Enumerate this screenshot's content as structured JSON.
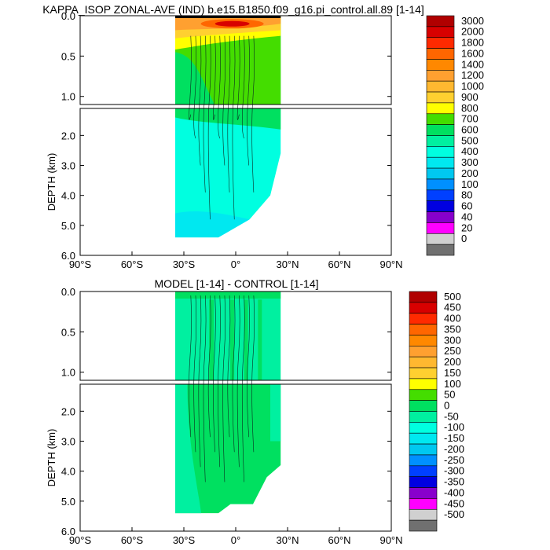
{
  "chart_data": [
    {
      "type": "heatmap",
      "title": "KAPPA_ISOP ZONAL-AVE (IND) b.e15.B1850.f09_g16.pi_control.all.89 [1-14]",
      "ylabel": "DEPTH (km)",
      "xlim": [
        -90,
        90
      ],
      "ylim": [
        6.0,
        0.0
      ],
      "xtick_values": [
        -90,
        -60,
        -30,
        0,
        30,
        60,
        90
      ],
      "xtick_labels": [
        "90°S",
        "60°S",
        "30°S",
        "0°",
        "30°N",
        "60°N",
        "90°N"
      ],
      "ytick_labels_upper": [
        "0.0",
        "0.5",
        "1.0"
      ],
      "ytick_values_upper": [
        0.0,
        0.5,
        1.0
      ],
      "ytick_labels_lower": [
        "2.0",
        "3.0",
        "4.0",
        "5.0",
        "6.0"
      ],
      "ytick_values_lower": [
        2.0,
        3.0,
        4.0,
        5.0,
        6.0
      ],
      "colorbar": {
        "labels": [
          "3000",
          "2000",
          "1800",
          "1600",
          "1400",
          "1200",
          "1000",
          "900",
          "800",
          "700",
          "600",
          "500",
          "400",
          "300",
          "200",
          "100",
          "80",
          "60",
          "40",
          "20",
          "0"
        ],
        "colors": [
          "#b00000",
          "#d80000",
          "#ff2a00",
          "#ff6600",
          "#ff8800",
          "#ffa030",
          "#ffb830",
          "#ffd030",
          "#ffff00",
          "#44dd00",
          "#00e060",
          "#00f0a0",
          "#00ffe0",
          "#00e8f0",
          "#00c8f0",
          "#0090ff",
          "#0040ff",
          "#0000e0",
          "#8800cc",
          "#ff00ff",
          "#d0d0d0",
          "#707070"
        ]
      },
      "domain_extent": {
        "lat_min": -35,
        "lat_max": 26,
        "max_depth_km": 5.4
      },
      "regions": [
        {
          "value_range": "500-600",
          "description": "bulk of basin below 1 km"
        },
        {
          "value_range": "700-800",
          "description": "0.2-1.0 km upper layer"
        },
        {
          "value_range": "900-3000",
          "description": "surface maximum near 10°S-10°N"
        }
      ]
    },
    {
      "type": "heatmap",
      "title": "MODEL [1-14] - CONTROL [1-14]",
      "ylabel": "DEPTH (km)",
      "xlim": [
        -90,
        90
      ],
      "ylim": [
        6.0,
        0.0
      ],
      "xtick_values": [
        -90,
        -60,
        -30,
        0,
        30,
        60,
        90
      ],
      "xtick_labels": [
        "90°S",
        "60°S",
        "30°S",
        "0°",
        "30°N",
        "60°N",
        "90°N"
      ],
      "ytick_labels_upper": [
        "0.0",
        "0.5",
        "1.0"
      ],
      "ytick_values_upper": [
        0.0,
        0.5,
        1.0
      ],
      "ytick_labels_lower": [
        "2.0",
        "3.0",
        "4.0",
        "5.0",
        "6.0"
      ],
      "ytick_values_lower": [
        2.0,
        3.0,
        4.0,
        5.0,
        6.0
      ],
      "colorbar": {
        "labels": [
          "500",
          "450",
          "400",
          "350",
          "300",
          "250",
          "200",
          "150",
          "100",
          "50",
          "0",
          "-50",
          "-100",
          "-150",
          "-200",
          "-250",
          "-300",
          "-350",
          "-400",
          "-450",
          "-500"
        ],
        "colors": [
          "#b00000",
          "#d80000",
          "#ff2a00",
          "#ff6600",
          "#ff8800",
          "#ffa030",
          "#ffb830",
          "#ffd030",
          "#ffff00",
          "#44dd00",
          "#00e060",
          "#00f0a0",
          "#00ffe0",
          "#00e8f0",
          "#00c8f0",
          "#0090ff",
          "#0040ff",
          "#0000e0",
          "#8800cc",
          "#ff00ff",
          "#d0d0d0",
          "#707070"
        ]
      },
      "domain_extent": {
        "lat_min": -35,
        "lat_max": 26,
        "max_depth_km": 5.4
      },
      "regions": [
        {
          "value_range": "0-50",
          "description": "dominant difference field"
        },
        {
          "value_range": "-50-0",
          "description": "upper-ocean and western patches"
        }
      ]
    }
  ]
}
